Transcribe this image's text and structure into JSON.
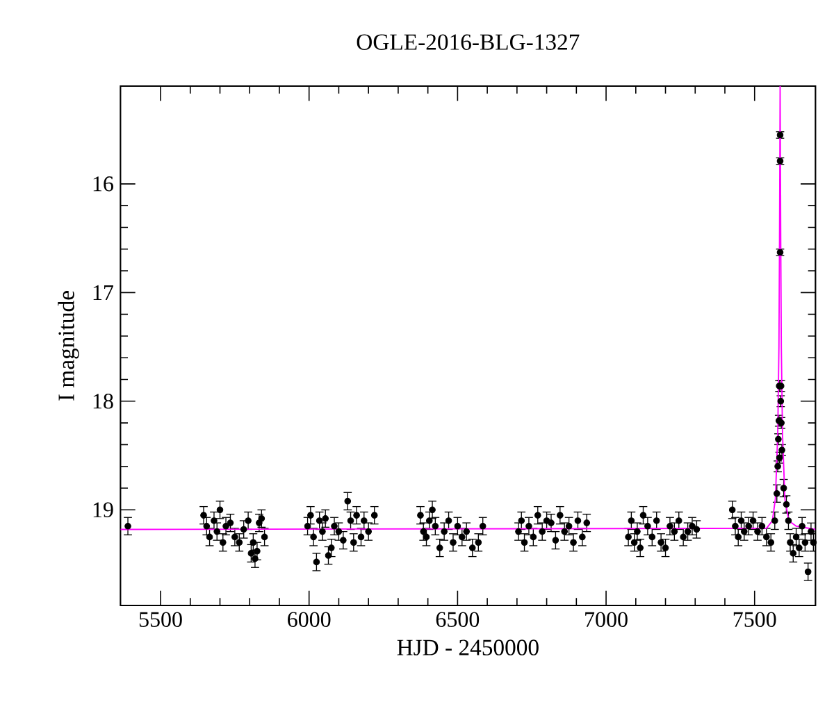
{
  "chart_data": {
    "type": "scatter",
    "title": "OGLE-2016-BLG-1327",
    "xlabel": "HJD - 2450000",
    "ylabel": "I magnitude",
    "xlim": [
      5365,
      7705
    ],
    "ylim": [
      19.88,
      15.1
    ],
    "xticks": [
      5500,
      6000,
      6500,
      7000,
      7500
    ],
    "yticks": [
      16,
      17,
      18,
      19
    ],
    "grid": false,
    "marker": "circle",
    "series": [
      {
        "color": "#000000",
        "x": [
          5390,
          5645,
          5655,
          5665,
          5680,
          5690,
          5700,
          5710,
          5720,
          5735,
          5750,
          5765,
          5780,
          5795,
          5805,
          5812,
          5818,
          5825,
          5832,
          5840,
          5850,
          5995,
          6005,
          6015,
          6025,
          6035,
          6045,
          6055,
          6065,
          6075,
          6085,
          6100,
          6115,
          6130,
          6140,
          6150,
          6160,
          6175,
          6185,
          6200,
          6220,
          6375,
          6385,
          6395,
          6405,
          6415,
          6425,
          6440,
          6455,
          6470,
          6485,
          6500,
          6515,
          6530,
          6550,
          6570,
          6585,
          6705,
          6715,
          6725,
          6740,
          6755,
          6770,
          6785,
          6800,
          6815,
          6830,
          6845,
          6860,
          6875,
          6890,
          6905,
          6920,
          6935,
          7075,
          7085,
          7095,
          7105,
          7115,
          7125,
          7140,
          7155,
          7170,
          7185,
          7200,
          7215,
          7230,
          7245,
          7260,
          7275,
          7290,
          7305,
          7425,
          7435,
          7445,
          7455,
          7465,
          7480,
          7495,
          7510,
          7525,
          7540,
          7555,
          7568,
          7575,
          7578,
          7580,
          7582,
          7583,
          7584,
          7586,
          7586,
          7586,
          7588,
          7589,
          7590,
          7592,
          7598,
          7607,
          7614,
          7620,
          7630,
          7640,
          7650,
          7660,
          7670,
          7680,
          7690,
          7698
        ],
        "values": [
          19.15,
          19.05,
          19.15,
          19.25,
          19.1,
          19.2,
          19.0,
          19.3,
          19.15,
          19.12,
          19.25,
          19.3,
          19.18,
          19.1,
          19.4,
          19.3,
          19.45,
          19.38,
          19.12,
          19.08,
          19.25,
          19.15,
          19.05,
          19.25,
          19.48,
          19.1,
          19.2,
          19.08,
          19.42,
          19.35,
          19.15,
          19.2,
          19.28,
          18.92,
          19.1,
          19.3,
          19.05,
          19.25,
          19.1,
          19.2,
          19.05,
          19.05,
          19.2,
          19.25,
          19.1,
          19.0,
          19.15,
          19.35,
          19.2,
          19.1,
          19.3,
          19.15,
          19.25,
          19.2,
          19.35,
          19.3,
          19.15,
          19.2,
          19.1,
          19.3,
          19.15,
          19.25,
          19.05,
          19.2,
          19.1,
          19.12,
          19.28,
          19.05,
          19.2,
          19.15,
          19.3,
          19.1,
          19.25,
          19.12,
          19.25,
          19.1,
          19.3,
          19.2,
          19.35,
          19.05,
          19.15,
          19.25,
          19.1,
          19.3,
          19.35,
          19.15,
          19.2,
          19.1,
          19.25,
          19.2,
          19.15,
          19.18,
          19.0,
          19.15,
          19.25,
          19.1,
          19.2,
          19.15,
          19.1,
          19.2,
          19.15,
          19.25,
          19.3,
          19.1,
          18.85,
          18.6,
          18.35,
          18.18,
          17.86,
          18.52,
          16.63,
          15.79,
          15.55,
          18.0,
          17.86,
          18.2,
          18.45,
          18.8,
          18.95,
          19.1,
          19.3,
          19.4,
          19.25,
          19.35,
          19.15,
          19.3,
          19.57,
          19.2,
          19.3
        ],
        "errors": [
          0.08,
          0.08,
          0.08,
          0.08,
          0.08,
          0.08,
          0.08,
          0.08,
          0.08,
          0.08,
          0.08,
          0.08,
          0.08,
          0.08,
          0.08,
          0.08,
          0.08,
          0.08,
          0.08,
          0.08,
          0.08,
          0.08,
          0.08,
          0.08,
          0.08,
          0.08,
          0.08,
          0.08,
          0.08,
          0.08,
          0.08,
          0.08,
          0.08,
          0.08,
          0.08,
          0.08,
          0.08,
          0.08,
          0.08,
          0.08,
          0.08,
          0.08,
          0.08,
          0.08,
          0.08,
          0.08,
          0.08,
          0.08,
          0.08,
          0.08,
          0.08,
          0.08,
          0.08,
          0.08,
          0.08,
          0.08,
          0.08,
          0.08,
          0.08,
          0.08,
          0.08,
          0.08,
          0.08,
          0.08,
          0.08,
          0.08,
          0.08,
          0.08,
          0.08,
          0.08,
          0.08,
          0.08,
          0.08,
          0.08,
          0.08,
          0.08,
          0.08,
          0.08,
          0.08,
          0.08,
          0.08,
          0.08,
          0.08,
          0.08,
          0.08,
          0.08,
          0.08,
          0.08,
          0.08,
          0.08,
          0.08,
          0.08,
          0.08,
          0.08,
          0.08,
          0.08,
          0.08,
          0.08,
          0.08,
          0.08,
          0.08,
          0.08,
          0.08,
          0.08,
          0.08,
          0.05,
          0.05,
          0.05,
          0.05,
          0.05,
          0.03,
          0.03,
          0.03,
          0.05,
          0.05,
          0.05,
          0.05,
          0.08,
          0.08,
          0.08,
          0.08,
          0.08,
          0.08,
          0.08,
          0.08,
          0.08,
          0.08,
          0.08,
          0.08
        ]
      },
      {
        "type": "line",
        "color": "#ff00ff",
        "line_style": "solid",
        "marker": "none",
        "x": [
          5365,
          7540,
          7560,
          7570,
          7578,
          7582,
          7584,
          7586,
          7588,
          7590,
          7594,
          7602,
          7615,
          7640,
          7705
        ],
        "values": [
          19.18,
          19.17,
          19.1,
          18.9,
          18.3,
          17.5,
          16.5,
          15.1,
          16.5,
          17.5,
          18.3,
          18.9,
          19.1,
          19.15,
          19.18
        ]
      }
    ]
  }
}
